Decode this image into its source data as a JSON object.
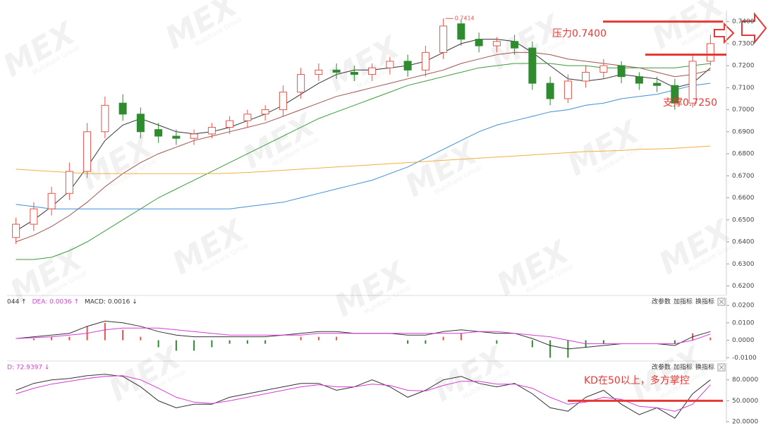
{
  "chart_data": [
    {
      "type": "candlestick",
      "up_color": "#e8524a",
      "down_color": "#2e8b2e",
      "open": [
        0.642,
        0.648,
        0.655,
        0.662,
        0.672,
        0.69,
        0.703,
        0.698,
        0.691,
        0.688,
        0.687,
        0.689,
        0.692,
        0.695,
        0.698,
        0.7,
        0.708,
        0.716,
        0.718,
        0.717,
        0.716,
        0.719,
        0.722,
        0.718,
        0.726,
        0.739,
        0.732,
        0.729,
        0.731,
        0.728,
        0.712,
        0.705,
        0.713,
        0.717,
        0.72,
        0.715,
        0.712,
        0.711,
        0.703,
        0.722
      ],
      "high": [
        0.651,
        0.658,
        0.665,
        0.676,
        0.694,
        0.706,
        0.707,
        0.701,
        0.694,
        0.691,
        0.691,
        0.694,
        0.697,
        0.7,
        0.702,
        0.711,
        0.719,
        0.721,
        0.721,
        0.72,
        0.721,
        0.724,
        0.725,
        0.729,
        0.7414,
        0.741,
        0.735,
        0.733,
        0.734,
        0.731,
        0.715,
        0.716,
        0.72,
        0.723,
        0.722,
        0.717,
        0.715,
        0.714,
        0.725,
        0.734
      ],
      "low": [
        0.639,
        0.645,
        0.652,
        0.659,
        0.669,
        0.687,
        0.695,
        0.687,
        0.685,
        0.684,
        0.684,
        0.687,
        0.689,
        0.692,
        0.695,
        0.697,
        0.705,
        0.713,
        0.714,
        0.713,
        0.713,
        0.716,
        0.715,
        0.715,
        0.723,
        0.729,
        0.726,
        0.726,
        0.725,
        0.709,
        0.702,
        0.703,
        0.71,
        0.714,
        0.712,
        0.709,
        0.708,
        0.7,
        0.701,
        0.72
      ],
      "close": [
        0.648,
        0.655,
        0.662,
        0.672,
        0.69,
        0.702,
        0.698,
        0.69,
        0.688,
        0.687,
        0.689,
        0.692,
        0.695,
        0.698,
        0.7,
        0.708,
        0.716,
        0.718,
        0.717,
        0.716,
        0.719,
        0.722,
        0.718,
        0.726,
        0.738,
        0.732,
        0.729,
        0.731,
        0.728,
        0.712,
        0.705,
        0.713,
        0.717,
        0.72,
        0.715,
        0.712,
        0.711,
        0.703,
        0.722,
        0.73
      ],
      "series": [
        {
          "color": "#333333",
          "values": [
            0.645,
            0.65,
            0.656,
            0.663,
            0.674,
            0.686,
            0.693,
            0.696,
            0.693,
            0.69,
            0.689,
            0.69,
            0.692,
            0.695,
            0.698,
            0.702,
            0.707,
            0.712,
            0.716,
            0.718,
            0.718,
            0.719,
            0.72,
            0.722,
            0.726,
            0.73,
            0.732,
            0.732,
            0.731,
            0.726,
            0.72,
            0.714,
            0.713,
            0.714,
            0.716,
            0.715,
            0.714,
            0.71,
            0.712,
            0.719
          ]
        },
        {
          "color": "#a0524d",
          "values": [
            0.64,
            0.643,
            0.647,
            0.652,
            0.658,
            0.665,
            0.671,
            0.676,
            0.68,
            0.683,
            0.686,
            0.688,
            0.69,
            0.692,
            0.694,
            0.697,
            0.7,
            0.703,
            0.706,
            0.708,
            0.71,
            0.712,
            0.714,
            0.716,
            0.718,
            0.721,
            0.723,
            0.725,
            0.726,
            0.726,
            0.725,
            0.723,
            0.722,
            0.721,
            0.72,
            0.719,
            0.717,
            0.715,
            0.716,
            0.718
          ]
        },
        {
          "color": "#3a9a3a",
          "values": [
            0.632,
            0.632,
            0.633,
            0.636,
            0.64,
            0.645,
            0.65,
            0.655,
            0.66,
            0.664,
            0.668,
            0.672,
            0.676,
            0.68,
            0.684,
            0.688,
            0.692,
            0.696,
            0.699,
            0.702,
            0.705,
            0.708,
            0.711,
            0.713,
            0.715,
            0.717,
            0.719,
            0.72,
            0.721,
            0.721,
            0.721,
            0.72,
            0.72,
            0.719,
            0.719,
            0.719,
            0.719,
            0.719,
            0.72,
            0.721
          ]
        },
        {
          "color": "#3d8fd6",
          "values": [
            0.657,
            0.656,
            0.655,
            0.655,
            0.655,
            0.655,
            0.655,
            0.655,
            0.655,
            0.655,
            0.655,
            0.655,
            0.655,
            0.656,
            0.657,
            0.658,
            0.66,
            0.662,
            0.664,
            0.666,
            0.668,
            0.671,
            0.674,
            0.678,
            0.682,
            0.686,
            0.69,
            0.693,
            0.695,
            0.697,
            0.699,
            0.7,
            0.702,
            0.703,
            0.705,
            0.706,
            0.707,
            0.709,
            0.711,
            0.712
          ]
        },
        {
          "color": "#f0b040",
          "values": [
            0.673,
            0.6725,
            0.672,
            0.6715,
            0.671,
            0.671,
            0.671,
            0.671,
            0.671,
            0.671,
            0.671,
            0.671,
            0.6712,
            0.6715,
            0.672,
            0.6725,
            0.673,
            0.6735,
            0.674,
            0.6745,
            0.675,
            0.6755,
            0.676,
            0.6765,
            0.677,
            0.6775,
            0.678,
            0.6785,
            0.679,
            0.6795,
            0.68,
            0.6805,
            0.681,
            0.6812,
            0.6815,
            0.682,
            0.6822,
            0.6825,
            0.683,
            0.6835
          ]
        }
      ],
      "ylim": [
        0.616,
        0.745
      ],
      "yticks": [
        {
          "value": 0.74,
          "label": "0.7400"
        },
        {
          "value": 0.73,
          "label": "0.7300"
        },
        {
          "value": 0.72,
          "label": "0.7200"
        },
        {
          "value": 0.71,
          "label": "0.7100"
        },
        {
          "value": 0.7,
          "label": "0.7000"
        },
        {
          "value": 0.69,
          "label": "0.6900"
        },
        {
          "value": 0.68,
          "label": "0.6800"
        },
        {
          "value": 0.67,
          "label": "0.6700"
        },
        {
          "value": 0.66,
          "label": "0.6600"
        },
        {
          "value": 0.65,
          "label": "0.6500"
        },
        {
          "value": 0.64,
          "label": "0.6400"
        },
        {
          "value": 0.63,
          "label": "0.6300"
        },
        {
          "value": 0.62,
          "label": "0.6200"
        }
      ],
      "levels": [
        {
          "text": "压力0.7400",
          "value": 0.74
        },
        {
          "text": "支撑0.7250",
          "value": 0.725
        }
      ],
      "annotations": [
        {
          "text": "0.7414",
          "value": 0.7414
        }
      ]
    },
    {
      "type": "line",
      "header": [
        {
          "text": "044 ↑",
          "color": "#333333"
        },
        {
          "text": "DEA: 0.0036 ↑",
          "color": "#d63ad6"
        },
        {
          "text": "MACD: 0.0016 ↓",
          "color": "#333333"
        }
      ],
      "bars": [
        0,
        0.001,
        0.002,
        0.002,
        0.008,
        0.01,
        0.006,
        0.002,
        -0.004,
        -0.006,
        -0.006,
        -0.004,
        -0.002,
        -0.002,
        -0.002,
        0,
        0.002,
        0.002,
        0.002,
        0,
        0,
        0,
        -0.002,
        -0.002,
        0.002,
        0.004,
        0,
        -0.002,
        0,
        -0.004,
        -0.01,
        -0.01,
        -0.004,
        -0.002,
        0,
        0,
        0,
        -0.002,
        0.004,
        0.0016
      ],
      "up_color": "#e8524a",
      "down_color": "#2e8b2e",
      "series": [
        {
          "color": "#333333",
          "values": [
            0.001,
            0.002,
            0.003,
            0.004,
            0.008,
            0.011,
            0.01,
            0.008,
            0.005,
            0.003,
            0.002,
            0.002,
            0.002,
            0.002,
            0.002,
            0.003,
            0.004,
            0.005,
            0.005,
            0.004,
            0.004,
            0.004,
            0.003,
            0.003,
            0.005,
            0.006,
            0.005,
            0.004,
            0.004,
            0.001,
            -0.003,
            -0.005,
            -0.004,
            -0.003,
            -0.002,
            -0.002,
            -0.002,
            -0.003,
            0.002,
            0.005
          ]
        },
        {
          "color": "#d63ad6",
          "values": [
            0.001,
            0.0015,
            0.002,
            0.003,
            0.004,
            0.006,
            0.007,
            0.007,
            0.007,
            0.006,
            0.005,
            0.004,
            0.003,
            0.003,
            0.003,
            0.003,
            0.003,
            0.004,
            0.004,
            0.004,
            0.004,
            0.004,
            0.004,
            0.004,
            0.004,
            0.004,
            0.005,
            0.005,
            0.004,
            0.003,
            0.002,
            0.0,
            -0.002,
            -0.002,
            -0.002,
            -0.002,
            -0.002,
            -0.002,
            0.0,
            0.0036
          ]
        }
      ],
      "ylim": [
        -0.0115,
        0.0245
      ],
      "yticks": [
        {
          "value": 0.02,
          "label": "0.0200"
        },
        {
          "value": 0.01,
          "label": "0.0100"
        },
        {
          "value": 0,
          "label": "0.0000"
        },
        {
          "value": -0.01,
          "label": "-0.0100"
        }
      ]
    },
    {
      "type": "line",
      "header": [
        {
          "text": "D: 72.9397 ↓",
          "color": "#d63ad6"
        }
      ],
      "series": [
        {
          "color": "#333333",
          "values": [
            65,
            75,
            80,
            82,
            86,
            88,
            85,
            70,
            50,
            40,
            45,
            45,
            55,
            60,
            65,
            70,
            75,
            75,
            65,
            70,
            80,
            70,
            55,
            65,
            80,
            85,
            75,
            70,
            75,
            60,
            40,
            35,
            55,
            65,
            45,
            30,
            40,
            25,
            60,
            80
          ]
        },
        {
          "color": "#d63ad6",
          "values": [
            60,
            68,
            74,
            78,
            82,
            85,
            86,
            80,
            68,
            55,
            48,
            46,
            50,
            55,
            60,
            65,
            70,
            73,
            70,
            70,
            74,
            72,
            65,
            64,
            72,
            78,
            78,
            74,
            74,
            68,
            55,
            45,
            48,
            55,
            52,
            42,
            40,
            35,
            45,
            73
          ]
        }
      ],
      "ylim": [
        18,
        104
      ],
      "yticks": [
        {
          "value": 80,
          "label": "80.0000"
        },
        {
          "value": 50,
          "label": "50.0000"
        },
        {
          "value": 20,
          "label": "20.0000"
        }
      ],
      "levels": [
        {
          "text": "KD在50以上，多方掌控",
          "value": 50
        }
      ]
    }
  ],
  "buttons": [
    "改参数",
    "加指标",
    "换指标"
  ],
  "watermark": {
    "mark": "MEX",
    "sub": "MultiBank Group"
  }
}
